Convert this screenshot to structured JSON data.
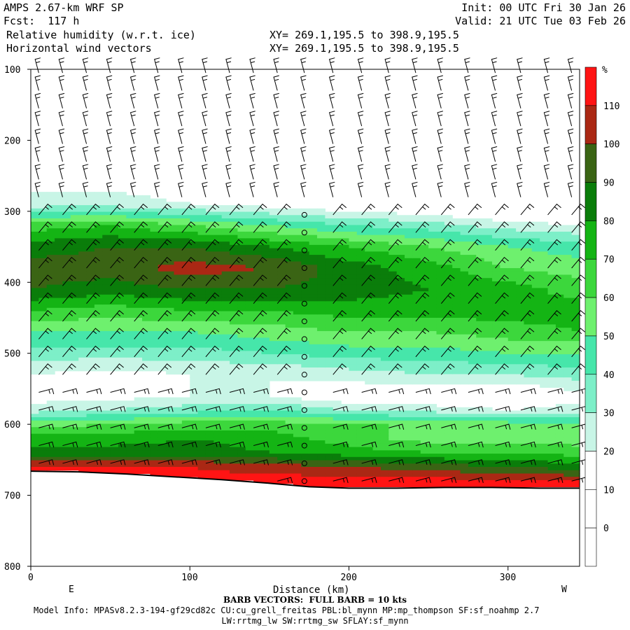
{
  "header": {
    "model": "AMPS 2.67-km WRF SP",
    "fcst": "Fcst:  117 h",
    "init": "Init: 00 UTC Fri 30 Jan 26",
    "valid": "Valid: 21 UTC Tue 03 Feb 26",
    "field1": "Relative humidity (w.r.t. ice)",
    "field2": "Horizontal wind vectors",
    "xy1": "XY= 269.1,195.5 to 398.9,195.5",
    "xy2": "XY= 269.1,195.5 to 398.9,195.5"
  },
  "footer": {
    "barb": "BARB VECTORS:  FULL BARB = 10 kts",
    "model_info": "Model Info: MPASv8.2.3-194-gf29cd82c CU:cu_grell_freitas PBL:bl_mynn MP:mp_thompson SF:sf_noahmp 2.7",
    "model_info2": "LW:rrtmg_lw SW:rrtmg_sw SFLAY:sf_mynn"
  },
  "chart_data": {
    "type": "heatmap",
    "title": "Relative humidity (w.r.t. ice)",
    "xlabel": "Distance (km)",
    "ylabel": "",
    "x_end_labels": [
      "E",
      "W"
    ],
    "xlim": [
      0,
      345
    ],
    "ylim": [
      800,
      100
    ],
    "xticks": [
      0,
      100,
      200,
      300
    ],
    "yticks": [
      100,
      200,
      300,
      400,
      500,
      600,
      700,
      800
    ],
    "colorbar": {
      "unit": "%",
      "levels": [
        0,
        10,
        20,
        30,
        40,
        50,
        60,
        70,
        80,
        90,
        100,
        110,
        120
      ],
      "colors": [
        "#ffffff",
        "#ffffff",
        "#ffffff",
        "#c8f5e6",
        "#7defc8",
        "#46e6aa",
        "#6ef06e",
        "#3cd73c",
        "#14b414",
        "#0a7d0a",
        "#3a6414",
        "#aa2814",
        "#ff1414"
      ]
    },
    "rh_profile": {
      "x": [
        0,
        50,
        100,
        150,
        200,
        250,
        300,
        345
      ],
      "p": [
        100,
        200,
        290,
        320,
        350,
        380,
        410,
        440,
        470,
        500,
        530,
        560,
        580,
        600,
        620,
        640,
        660,
        680
      ],
      "rh": [
        [
          10,
          10,
          35,
          75,
          95,
          105,
          100,
          80,
          60,
          45,
          30,
          25,
          35,
          65,
          85,
          95,
          120,
          125
        ],
        [
          10,
          10,
          35,
          80,
          100,
          105,
          95,
          75,
          60,
          45,
          25,
          25,
          40,
          70,
          85,
          95,
          120,
          125
        ],
        [
          10,
          10,
          30,
          70,
          100,
          115,
          100,
          80,
          60,
          45,
          30,
          30,
          45,
          75,
          90,
          95,
          120,
          125
        ],
        [
          10,
          10,
          25,
          60,
          90,
          110,
          100,
          80,
          65,
          50,
          30,
          30,
          50,
          75,
          85,
          90,
          115,
          125
        ],
        [
          10,
          10,
          20,
          50,
          80,
          95,
          95,
          85,
          70,
          55,
          35,
          20,
          40,
          70,
          75,
          85,
          110,
          125
        ],
        [
          10,
          10,
          15,
          45,
          70,
          85,
          90,
          85,
          70,
          55,
          40,
          20,
          35,
          70,
          65,
          80,
          105,
          125
        ],
        [
          10,
          10,
          10,
          35,
          60,
          70,
          85,
          85,
          75,
          60,
          40,
          15,
          30,
          65,
          65,
          80,
          100,
          120
        ],
        [
          10,
          10,
          10,
          30,
          55,
          65,
          75,
          85,
          80,
          60,
          45,
          25,
          35,
          60,
          65,
          75,
          95,
          120
        ]
      ]
    },
    "terrain_surface": {
      "x": [
        0,
        30,
        60,
        90,
        120,
        150,
        175,
        200,
        230,
        260,
        290,
        320,
        345
      ],
      "p": [
        666,
        667,
        670,
        674,
        678,
        683,
        688,
        690,
        690,
        689,
        689,
        690,
        690
      ]
    },
    "barb_columns_x": [
      5,
      20,
      35,
      50,
      65,
      80,
      95,
      110,
      125,
      140,
      155,
      172,
      190,
      208,
      225,
      242,
      258,
      275,
      292,
      308,
      325,
      340
    ],
    "barb_levels_p": [
      105,
      130,
      155,
      180,
      205,
      230,
      255,
      280,
      305,
      330,
      355,
      380,
      405,
      430,
      455,
      480,
      505,
      530,
      555,
      580,
      605,
      630,
      655,
      680
    ]
  }
}
